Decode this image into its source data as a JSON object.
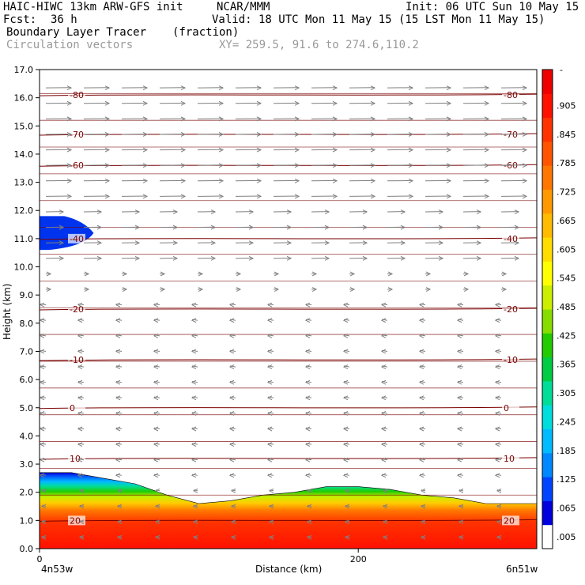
{
  "header": {
    "model": "HAIC-HIWC 13km ARW-GFS init",
    "org": "NCAR/MMM",
    "init": "Init: 06 UTC Sun 10 May 15",
    "fcst_label": "Fcst:",
    "fcst_value": "36 h",
    "valid": "Valid: 18 UTC Mon 11 May 15 (15 LST Mon 11 May 15)",
    "field1": "Boundary Layer Tracer",
    "field1_units": "(fraction)",
    "field2": "Circulation vectors",
    "xy": "XY= 259.5, 91.6 to 274.6,110.2"
  },
  "chart_data": {
    "type": "heatmap",
    "ylabel": "Height (km)",
    "xlabel": "Distance (km)",
    "x_left_label": "4n53w",
    "x_right_label": "6n51w",
    "x_ticks": [
      "0",
      "200"
    ],
    "x_tick_values": [
      0,
      200
    ],
    "xlim": [
      0,
      312
    ],
    "ylim": [
      0,
      17
    ],
    "y_ticks": [
      "0.0",
      "1.0",
      "2.0",
      "3.0",
      "4.0",
      "5.0",
      "6.0",
      "7.0",
      "8.0",
      "9.0",
      "10.0",
      "11.0",
      "12.0",
      "13.0",
      "14.0",
      "15.0",
      "16.0",
      "17.0"
    ],
    "colorbar": {
      "labels": [
        ".005",
        ".065",
        ".125",
        ".185",
        ".245",
        ".305",
        ".365",
        ".425",
        ".485",
        ".545",
        ".605",
        ".665",
        ".725",
        ".785",
        ".845",
        ".905"
      ],
      "top_label": "-",
      "colors": [
        "#ffffff",
        "#0000dd",
        "#0044ff",
        "#0088ff",
        "#00bbff",
        "#00dddd",
        "#00dd99",
        "#00cc44",
        "#22cc00",
        "#88dd00",
        "#ccee00",
        "#ffff00",
        "#ffdd00",
        "#ffbb00",
        "#ff9900",
        "#ff7700",
        "#ff5500",
        "#ff3300",
        "#ff1100",
        "#ee0000"
      ]
    },
    "temperature_contours": [
      {
        "label": "20",
        "height_km": 1.0
      },
      {
        "label": "10",
        "height_km": 3.2
      },
      {
        "label": "0",
        "height_km": 5.0
      },
      {
        "label": "-10",
        "height_km": 6.7
      },
      {
        "label": "-20",
        "height_km": 8.5
      },
      {
        "label": "-40",
        "height_km": 11.0
      },
      {
        "label": "-60",
        "height_km": 13.6
      },
      {
        "label": "-70",
        "height_km": 14.7
      },
      {
        "label": "-80",
        "height_km": 16.1
      }
    ],
    "boundary_layer_top_km": [
      {
        "x": 0,
        "top": 2.7
      },
      {
        "x": 20,
        "top": 2.7
      },
      {
        "x": 40,
        "top": 2.5
      },
      {
        "x": 60,
        "top": 2.3
      },
      {
        "x": 80,
        "top": 1.9
      },
      {
        "x": 100,
        "top": 1.6
      },
      {
        "x": 120,
        "top": 1.7
      },
      {
        "x": 140,
        "top": 1.9
      },
      {
        "x": 160,
        "top": 2.0
      },
      {
        "x": 180,
        "top": 2.2
      },
      {
        "x": 200,
        "top": 2.2
      },
      {
        "x": 220,
        "top": 2.1
      },
      {
        "x": 240,
        "top": 1.9
      },
      {
        "x": 260,
        "top": 1.8
      },
      {
        "x": 280,
        "top": 1.6
      },
      {
        "x": 312,
        "top": 1.6
      }
    ],
    "upper_tracer_layer_km": {
      "x_start": 0,
      "x_end": 28,
      "bottom": 10.6,
      "top": 11.8
    },
    "vectors": "westerly (rightward) above ~9.5 km, easterly (leftward) below"
  }
}
